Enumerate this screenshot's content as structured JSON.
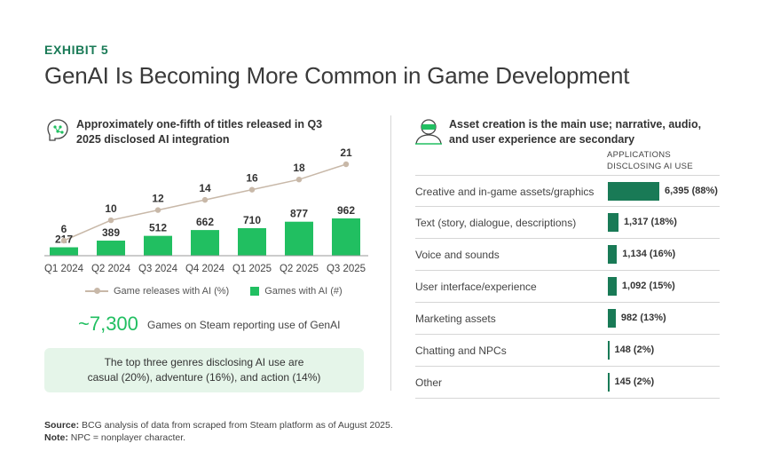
{
  "exhibit_label": "EXHIBIT 5",
  "title": "GenAI Is Becoming More Common in Game Development",
  "left_panel": {
    "heading_line1": "Approximately one-fifth of titles released in Q3",
    "heading_line2": "2025 disclosed AI integration",
    "legend_line": "Game releases with AI (%)",
    "legend_bar": "Games with AI (#)",
    "big_number": "~7,300",
    "big_number_label": "Games on Steam reporting use of GenAI",
    "callout_line1": "The top three genres disclosing AI use are",
    "callout_line2": "casual (20%), adventure (16%), and action (14%)"
  },
  "right_panel": {
    "heading_line1": "Asset creation is the main use; narrative, audio,",
    "heading_line2": "and user experience are secondary",
    "column_header_line1": "APPLICATIONS",
    "column_header_line2": "DISCLOSING AI USE"
  },
  "source_label": "Source:",
  "source_text": "BCG analysis of data from scraped from Steam platform as of August 2025.",
  "note_label": "Note:",
  "note_text": "NPC = nonplayer character.",
  "colors": {
    "accent_green": "#21bf61",
    "dark_green": "#197a56",
    "line_tan": "#c8b8a8",
    "callout_bg": "#e5f5e9"
  },
  "chart_data": [
    {
      "type": "bar",
      "title": "Approximately one-fifth of titles released in Q3 2025 disclosed AI integration",
      "categories": [
        "Q1 2024",
        "Q2 2024",
        "Q3 2024",
        "Q4 2024",
        "Q1 2025",
        "Q2 2025",
        "Q3 2025"
      ],
      "series": [
        {
          "name": "Games with AI (#)",
          "kind": "bar",
          "values": [
            217,
            389,
            512,
            662,
            710,
            877,
            962
          ],
          "labels": [
            "217",
            "389",
            "512",
            "662",
            "710",
            "877",
            "962"
          ]
        },
        {
          "name": "Game releases with AI (%)",
          "kind": "line",
          "values": [
            6,
            10,
            12,
            14,
            16,
            18,
            21
          ],
          "labels": [
            "6",
            "10",
            "12",
            "14",
            "16",
            "18",
            "21"
          ]
        }
      ],
      "legend": "bottom"
    },
    {
      "type": "bar",
      "orientation": "horizontal",
      "title": "Asset creation is the main use; narrative, audio, and user experience are secondary",
      "categories": [
        "Creative and in-game assets/graphics",
        "Text (story, dialogue, descriptions)",
        "Voice and sounds",
        "User interface/experience",
        "Marketing assets",
        "Chatting and NPCs",
        "Other"
      ],
      "values": [
        6395,
        1317,
        1134,
        1092,
        982,
        148,
        145
      ],
      "value_labels": [
        "6,395 (88%)",
        "1,317 (18%)",
        "1,134 (16%)",
        "1,092 (15%)",
        "982 (13%)",
        "148 (2%)",
        "145 (2%)"
      ]
    }
  ]
}
